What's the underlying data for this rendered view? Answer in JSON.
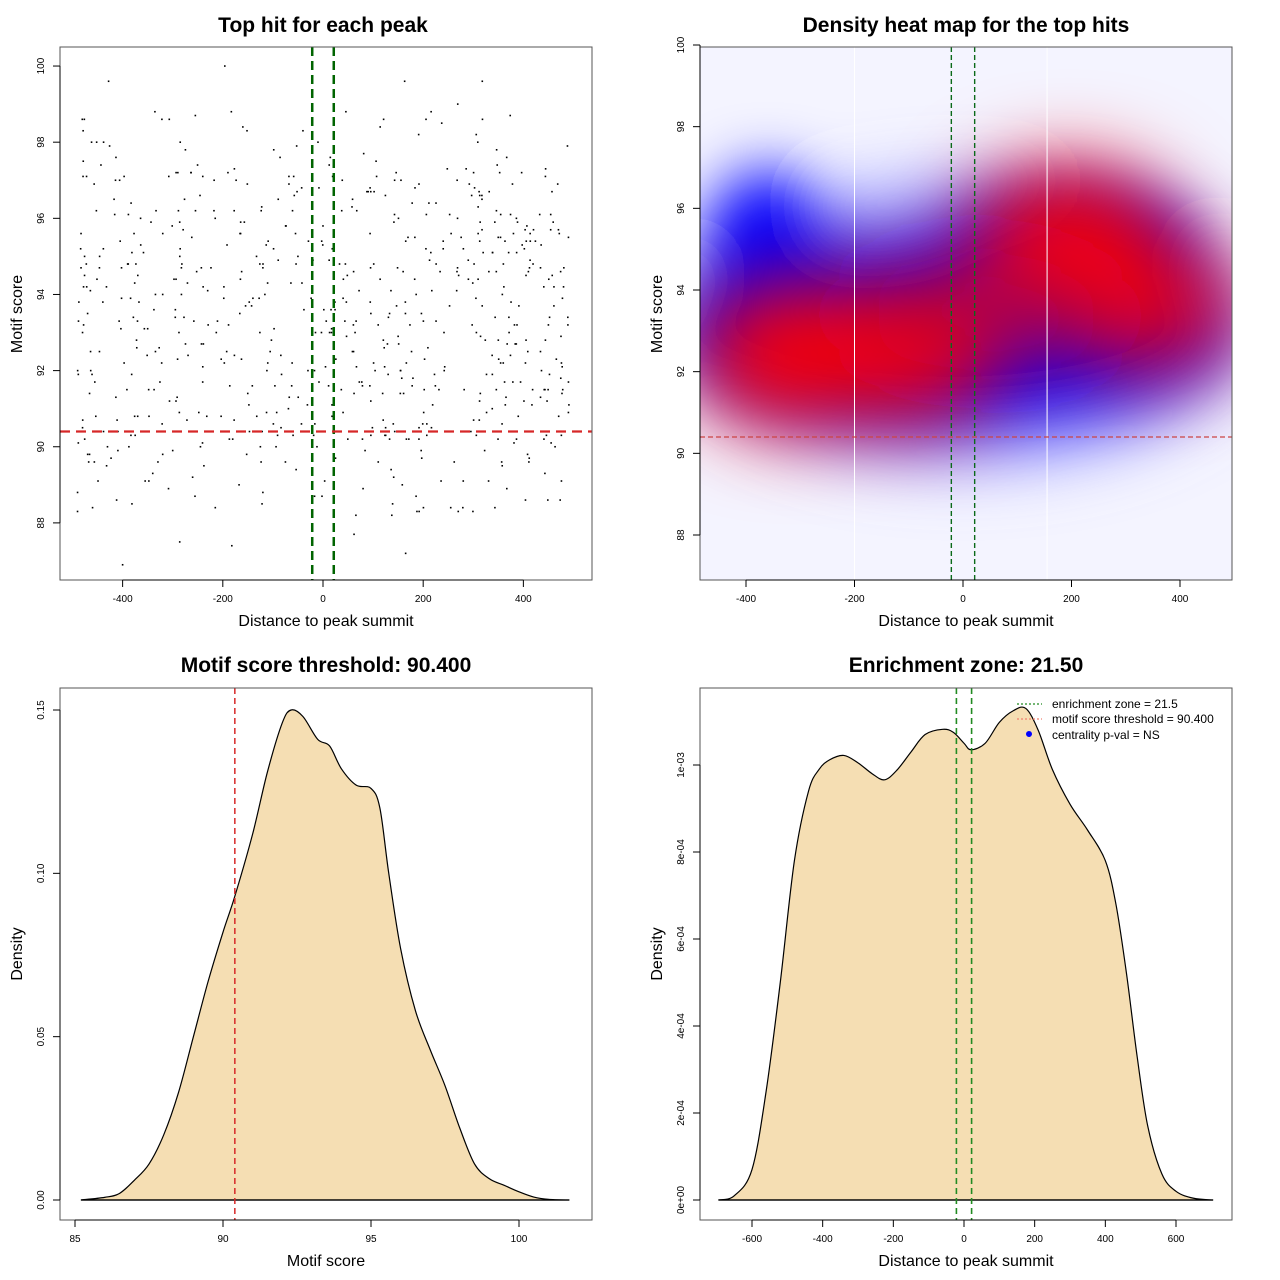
{
  "chart_data": [
    {
      "type": "scatter",
      "title": "Top hit for each peak",
      "xlabel": "Distance to peak summit",
      "ylabel": "Motif score",
      "xlim": [
        -525,
        537
      ],
      "ylim": [
        86.5,
        100.5
      ],
      "xticks": [
        -400,
        -200,
        0,
        200,
        400
      ],
      "yticks": [
        88,
        90,
        92,
        94,
        96,
        98,
        100
      ],
      "enrichment_zone": [
        -21.5,
        21.5
      ],
      "enrichment_color": "#006400",
      "threshold": 90.4,
      "threshold_color": "#d62728",
      "points_count_approx": 700,
      "points_x_range": [
        -490,
        495
      ],
      "points_y_range": [
        86.9,
        100
      ],
      "points_sample": [
        [
          -196,
          100
        ],
        [
          -428,
          99.6
        ],
        [
          163,
          99.6
        ],
        [
          318,
          99.6
        ],
        [
          269,
          99
        ],
        [
          -40,
          98.3
        ],
        [
          121,
          98.6
        ],
        [
          -160,
          98.4
        ],
        [
          -462,
          98
        ],
        [
          -438,
          98
        ],
        [
          -285,
          98
        ],
        [
          -10,
          98
        ],
        [
          191,
          98.2
        ],
        [
          309,
          98
        ],
        [
          488,
          97.9
        ],
        [
          -426,
          97.9
        ],
        [
          -479,
          97.1
        ],
        [
          -472,
          97.1
        ],
        [
          -397,
          97.1
        ],
        [
          -406,
          97
        ],
        [
          -240,
          97.1
        ],
        [
          -68,
          97.1
        ],
        [
          107,
          97.1
        ],
        [
          444,
          97.1
        ],
        [
          -483,
          95.6
        ],
        [
          -301,
          95.8
        ],
        [
          -157,
          95.9
        ],
        [
          94,
          95.6
        ],
        [
          240,
          95.4
        ],
        [
          343,
          95.9
        ],
        [
          470,
          95.7
        ],
        [
          490,
          95.5
        ],
        [
          -476,
          94.5
        ],
        [
          -390,
          94.8
        ],
        [
          -120,
          94.7
        ],
        [
          -20,
          94.9
        ],
        [
          33,
          94.8
        ],
        [
          160,
          94.6
        ],
        [
          290,
          94.9
        ],
        [
          410,
          94.6
        ],
        [
          -478,
          94.2
        ],
        [
          -320,
          94.0
        ],
        [
          -116,
          94.0
        ],
        [
          -42,
          94.3
        ],
        [
          72,
          94.1
        ],
        [
          186,
          94.0
        ],
        [
          358,
          94.0
        ],
        [
          478,
          93.9
        ],
        [
          -480,
          93.0
        ],
        [
          -350,
          93.1
        ],
        [
          -213,
          93.0
        ],
        [
          -15,
          93.0
        ],
        [
          47,
          92.9
        ],
        [
          150,
          92.9
        ],
        [
          324,
          92.8
        ],
        [
          444,
          92.8
        ],
        [
          -464,
          92.5
        ],
        [
          -397,
          92.2
        ],
        [
          -240,
          92.1
        ],
        [
          -30,
          92.0
        ],
        [
          5,
          92.1
        ],
        [
          104,
          92.0
        ],
        [
          242,
          92.0
        ],
        [
          476,
          92.2
        ],
        [
          -466,
          91.4
        ],
        [
          -348,
          91.5
        ],
        [
          -96,
          91.6
        ],
        [
          -8,
          91.7
        ],
        [
          62,
          91.4
        ],
        [
          178,
          91.6
        ],
        [
          346,
          91.5
        ],
        [
          490,
          91.7
        ],
        [
          -480,
          90.5
        ],
        [
          -411,
          90.7
        ],
        [
          -232,
          90.8
        ],
        [
          -43,
          90.6
        ],
        [
          18,
          90.8
        ],
        [
          125,
          90.5
        ],
        [
          312,
          90.7
        ],
        [
          446,
          90.3
        ],
        [
          -466,
          89.8
        ],
        [
          -300,
          89.9
        ],
        [
          -125,
          90.0
        ],
        [
          -12,
          90.0
        ],
        [
          84,
          89.9
        ],
        [
          196,
          89.9
        ],
        [
          262,
          89.6
        ],
        [
          411,
          89.6
        ],
        [
          -432,
          89.5
        ],
        [
          -355,
          89.1
        ],
        [
          -75,
          89.6
        ],
        [
          25,
          89.7
        ],
        [
          136,
          89.4
        ],
        [
          280,
          89.1
        ],
        [
          443,
          89.3
        ],
        [
          476,
          89.1
        ],
        [
          -490,
          88.3
        ],
        [
          -460,
          88.4
        ],
        [
          -412,
          88.6
        ],
        [
          -215,
          88.4
        ],
        [
          -120,
          88.8
        ],
        [
          -2,
          88.7
        ],
        [
          80,
          88.9
        ],
        [
          270,
          88.3
        ],
        [
          -400,
          86.9
        ],
        [
          -286,
          87.5
        ],
        [
          -182,
          87.4
        ],
        [
          62,
          87.7
        ],
        [
          165,
          87.2
        ]
      ]
    },
    {
      "type": "heatmap",
      "title": "Density heat map for the top hits",
      "xlabel": "Distance to peak summit",
      "ylabel": "Motif score",
      "xlim": [
        -500,
        500
      ],
      "ylim": [
        86.9,
        100
      ],
      "xticks": [
        -400,
        -200,
        0,
        200,
        400
      ],
      "yticks": [
        88,
        90,
        92,
        94,
        96,
        98,
        100
      ],
      "colormap": [
        "#ffffff",
        "#0000ff",
        "#ff0000"
      ],
      "density_peaks": [
        {
          "x": -120,
          "y": 92.6,
          "intensity": 1.0
        },
        {
          "x": -310,
          "y": 92.4,
          "intensity": 0.85
        },
        {
          "x": 195,
          "y": 95.3,
          "intensity": 0.8
        },
        {
          "x": 340,
          "y": 93.6,
          "intensity": 0.65
        }
      ],
      "white_guide_lines_x": [
        -200,
        155
      ],
      "enrichment_zone": [
        -21.5,
        21.5
      ],
      "threshold": 90.4
    },
    {
      "type": "area",
      "title": "Motif score threshold: 90.400",
      "xlabel": "Motif score",
      "ylabel": "Density",
      "xlim": [
        84.6,
        102.5
      ],
      "ylim": [
        -0.006,
        0.156
      ],
      "xticks": [
        85,
        90,
        95,
        100
      ],
      "yticks": [
        0.0,
        0.05,
        0.1,
        0.15
      ],
      "ytick_labels": [
        "0.00",
        "0.05",
        "0.10",
        "0.15"
      ],
      "fill_color": "#f5deb3",
      "threshold": 90.4,
      "threshold_color": "#d62728",
      "x": [
        85.2,
        86.0,
        86.5,
        87.0,
        87.5,
        88.0,
        88.5,
        89.0,
        89.5,
        90.0,
        90.4,
        91.0,
        91.5,
        92.0,
        92.3,
        92.7,
        93.2,
        93.6,
        94.0,
        94.5,
        95.0,
        95.3,
        95.6,
        96.0,
        96.5,
        97.0,
        97.5,
        98.0,
        98.5,
        99.0,
        99.5,
        100.0,
        100.5,
        101.0,
        101.7
      ],
      "y": [
        0.0,
        0.0008,
        0.002,
        0.006,
        0.011,
        0.02,
        0.033,
        0.05,
        0.067,
        0.082,
        0.093,
        0.112,
        0.131,
        0.146,
        0.15,
        0.148,
        0.141,
        0.139,
        0.132,
        0.127,
        0.126,
        0.12,
        0.1,
        0.077,
        0.058,
        0.046,
        0.035,
        0.022,
        0.011,
        0.0065,
        0.0045,
        0.0025,
        0.0009,
        0.0002,
        0.0
      ]
    },
    {
      "type": "area",
      "title": "Enrichment zone: 21.50",
      "xlabel": "Distance to peak summit",
      "ylabel": "Density",
      "xlim": [
        -700,
        750
      ],
      "ylim": [
        -4e-05,
        0.00111
      ],
      "xticks": [
        -600,
        -400,
        -200,
        0,
        200,
        400,
        600
      ],
      "yticks": [
        0,
        0.0002,
        0.0004,
        0.0006,
        0.0008,
        0.001
      ],
      "ytick_labels": [
        "0e+00",
        "2e-04",
        "4e-04",
        "6e-04",
        "8e-04",
        "1e-03"
      ],
      "fill_color": "#f5deb3",
      "enrichment_zone": [
        -21.5,
        21.5
      ],
      "enrichment_color": "#228b22",
      "x": [
        -695,
        -650,
        -600,
        -560,
        -520,
        -480,
        -440,
        -410,
        -380,
        -340,
        -300,
        -260,
        -225,
        -190,
        -150,
        -110,
        -60,
        -30,
        0,
        20,
        60,
        100,
        140,
        175,
        210,
        250,
        300,
        350,
        400,
        430,
        460,
        490,
        520,
        560,
        600,
        650,
        705
      ],
      "y": [
        0,
        1e-05,
        7e-05,
        0.00025,
        0.0005,
        0.00078,
        0.00094,
        0.00099,
        0.001012,
        0.001022,
        0.001005,
        0.00098,
        0.000966,
        0.000988,
        0.00103,
        0.00107,
        0.001082,
        0.001075,
        0.00105,
        0.001035,
        0.00105,
        0.001098,
        0.001125,
        0.00113,
        0.00108,
        0.00099,
        0.00091,
        0.00085,
        0.00078,
        0.00068,
        0.00052,
        0.00033,
        0.00017,
        6e-05,
        2e-05,
        4e-06,
        0
      ]
    }
  ],
  "legend": {
    "position": "top-right",
    "items": [
      {
        "label": "enrichment zone = 21.5",
        "style": "dotted-line",
        "color": "#228b22"
      },
      {
        "label": "motif score threshold = 90.400",
        "style": "dotted-line",
        "color": "#f08070"
      },
      {
        "label": "centrality p-val = NS",
        "style": "point",
        "color": "#0000ff"
      }
    ]
  }
}
